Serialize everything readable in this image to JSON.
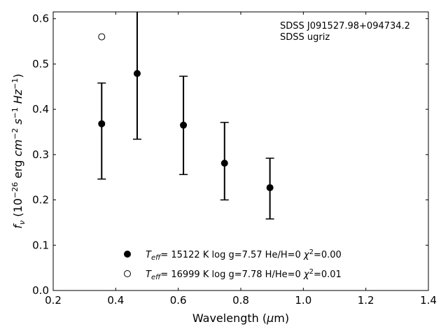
{
  "chart_data": {
    "type": "scatter",
    "annotation_lines": [
      "SDSS J091527.98+094734.2",
      "SDSS ugriz"
    ],
    "xlabel": {
      "pre": "Wavelength (",
      "mu": "μ",
      "post": "m)"
    },
    "ylabel": {
      "f": "f",
      "nu": "ν",
      "pre": " (10",
      "exp1": "−26",
      "mid": " erg ",
      "cm": "cm",
      "exp2": "−2",
      "s": " s",
      "exp3": "−1",
      "hz": " Hz",
      "exp4": "−1",
      "post": ")"
    },
    "xlim": [
      0.2,
      1.4
    ],
    "ylim": [
      0.0,
      0.615
    ],
    "xticks": [
      0.2,
      0.4,
      0.6,
      0.8,
      1.0,
      1.2,
      1.4
    ],
    "xtick_labels": [
      "0.2",
      "0.4",
      "0.6",
      "0.8",
      "1.0",
      "1.2",
      "1.4"
    ],
    "yticks": [
      0.0,
      0.1,
      0.2,
      0.3,
      0.4,
      0.5,
      0.6
    ],
    "ytick_labels": [
      "0.0",
      "0.1",
      "0.2",
      "0.3",
      "0.4",
      "0.5",
      "0.6"
    ],
    "grid": false,
    "observed": {
      "x": [
        0.3551,
        0.4686,
        0.6166,
        0.748,
        0.8932
      ],
      "y": [
        0.368,
        0.479,
        0.365,
        0.281,
        0.227
      ],
      "yerr_low": [
        0.246,
        0.334,
        0.256,
        0.2,
        0.158
      ],
      "yerr_high": [
        0.458,
        0.615,
        0.473,
        0.371,
        0.292
      ]
    },
    "model_hydrogen": {
      "x": [
        0.3551
      ],
      "y": [
        0.56
      ]
    },
    "legend": {
      "placement": "lower-center",
      "entries": [
        {
          "marker": "filled",
          "teff": "T",
          "teff_sub": "eff",
          "text": "= 15122 K  log g=7.57  He/H=0  ",
          "chi": "χ",
          "chi_sup": "2",
          "chi_val": "=0.00"
        },
        {
          "marker": "open",
          "teff": "T",
          "teff_sub": "eff",
          "text": "= 16999 K  log g=7.78  H/He=0  ",
          "chi": "χ",
          "chi_sup": "2",
          "chi_val": "=0.01"
        }
      ]
    }
  }
}
